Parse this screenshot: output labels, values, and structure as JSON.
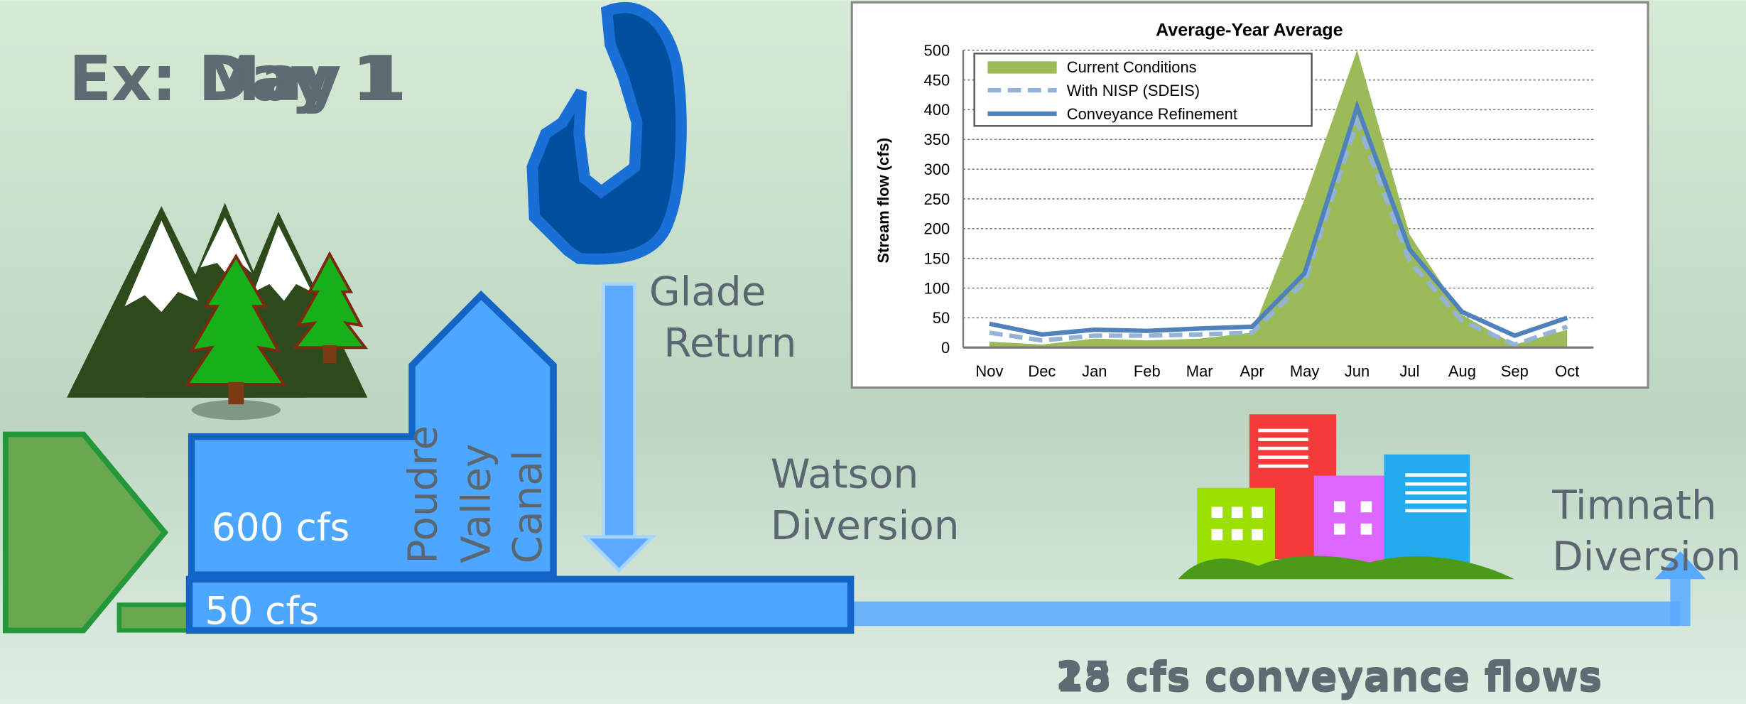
{
  "slide_title": {
    "lines": [
      "Ex: Day 1",
      "Ex: May 1"
    ]
  },
  "flow_labels": {
    "main_canal_flow": "600 cfs",
    "conveyance_channel_flow": "50 cfs",
    "conveyance_flows": [
      "25 cfs conveyance flows",
      "18 cfs conveyance flows"
    ]
  },
  "canal_name": [
    "Poudre",
    "Valley",
    "Canal"
  ],
  "glade_return": [
    "Glade",
    "Return"
  ],
  "watson_diversion": [
    "Watson",
    "Diversion"
  ],
  "timnath_diversion": [
    "Timnath",
    "Diversion"
  ],
  "chart_data": {
    "type": "line",
    "title": "Average-Year Average",
    "y_label": "Stream flow (cfs)",
    "categories": [
      "Nov",
      "Dec",
      "Jan",
      "Feb",
      "Mar",
      "Apr",
      "May",
      "Jun",
      "Jul",
      "Aug",
      "Sep",
      "Oct"
    ],
    "series": [
      {
        "name": "Current Conditions",
        "color": "#9bbb59",
        "style": "area",
        "values": [
          10,
          5,
          15,
          12,
          15,
          25,
          250,
          500,
          190,
          55,
          5,
          30
        ]
      },
      {
        "name": "With NISP (SDEIS)",
        "color": "#95b3d7",
        "style": "dashed",
        "values": [
          25,
          12,
          20,
          20,
          22,
          25,
          110,
          380,
          145,
          45,
          5,
          35
        ]
      },
      {
        "name": "Conveyance Refinement",
        "color": "#4f81bd",
        "style": "solid",
        "values": [
          40,
          22,
          30,
          28,
          32,
          35,
          125,
          405,
          165,
          60,
          20,
          50
        ]
      }
    ],
    "ylim": [
      0,
      500
    ],
    "yticks": [
      0,
      50,
      100,
      150,
      200,
      250,
      300,
      350,
      400,
      450,
      500
    ],
    "grid": true,
    "legend": "top-left"
  }
}
